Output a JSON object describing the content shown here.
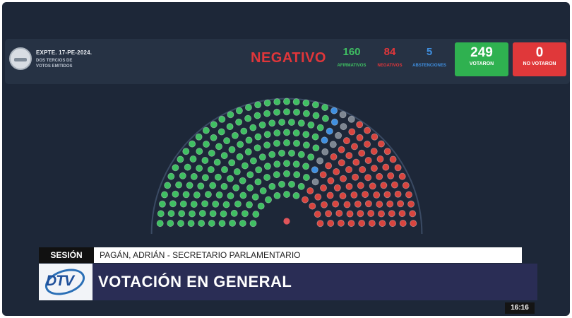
{
  "header": {
    "expediente": "EXPTE. 17-PE-2024.",
    "requirement": "DOS TERCIOS DE VOTOS EMITIDOS",
    "result": "NEGATIVO"
  },
  "tally": {
    "afirmativos": {
      "value": "160",
      "label": "AFIRMATIVOS",
      "color": "#3fbf62"
    },
    "negativos": {
      "value": "84",
      "label": "NEGATIVOS",
      "color": "#e0363a"
    },
    "abstenciones": {
      "value": "5",
      "label": "ABSTENCIONES",
      "color": "#3f8fe0"
    },
    "votaron": {
      "value": "249",
      "label": "VOTARON",
      "color": "#2fb150"
    },
    "no_votaron": {
      "value": "0",
      "label": "NO VOTARON",
      "color": "#e0383a"
    }
  },
  "chamber": {
    "seat_colors": {
      "afirmativo": "#3fbf62",
      "negativo": "#d8453f",
      "abstencion": "#3f8fe0",
      "ausente": "#7d8692",
      "presidencia": "#e0555a"
    }
  },
  "lower_third": {
    "section": "SESIÓN",
    "speaker": "PAGÁN, ADRIÁN - SECRETARIO PARLAMENTARIO",
    "title": "VOTACIÓN EN GENERAL",
    "channel_logo": "DTV",
    "clock": "16:16"
  }
}
